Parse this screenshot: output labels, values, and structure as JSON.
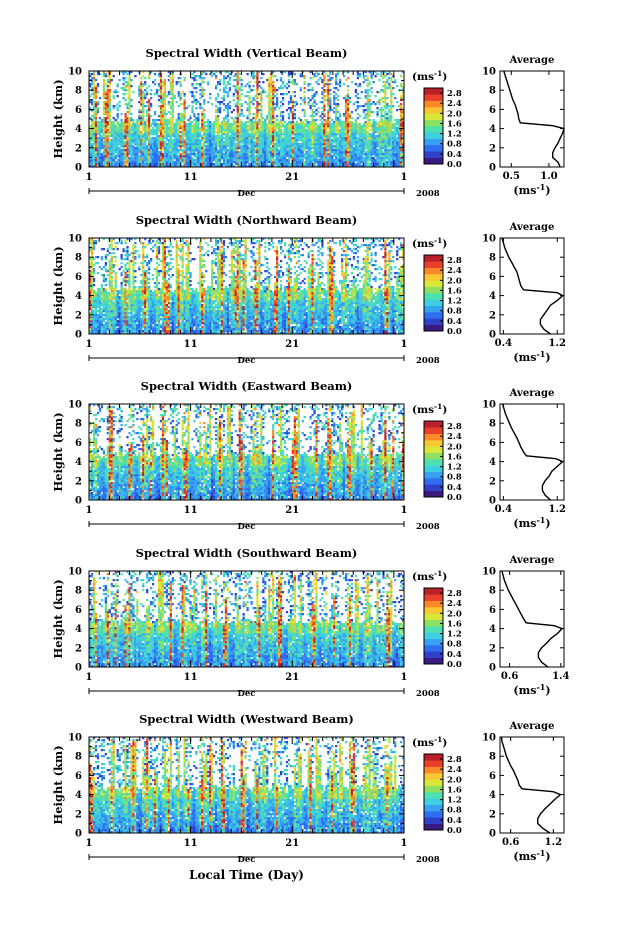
{
  "figure": {
    "xlabel": "Local Time (Day)",
    "colorbar_unit": "(ms",
    "colorbar_unit_exp": "-1",
    "colorbar_unit_close": ")",
    "avg_title": "Average",
    "ylabel": "Height (km)",
    "month_label": "Dec",
    "year_label": "2008"
  },
  "colors": {
    "colormap": [
      "#3a1a80",
      "#3040c8",
      "#2f6ef0",
      "#36a2f0",
      "#3ecfe0",
      "#4fe0b0",
      "#8ee060",
      "#d8e83a",
      "#f8c832",
      "#f88a28",
      "#e8402a",
      "#b8202a"
    ]
  },
  "chart_data": [
    {
      "type": "heatmap",
      "title": "Spectral Width (Vertical Beam)",
      "ylabel": "Height (km)",
      "ylim": [
        0,
        10
      ],
      "yticks": [
        0,
        2,
        4,
        6,
        8,
        10
      ],
      "xticks": [
        "1",
        "11",
        "21",
        "1"
      ],
      "xlabel_month": "Dec",
      "year": "2008",
      "colorbar_ticks": [
        "0.0",
        "0.4",
        "0.8",
        "1.2",
        "1.6",
        "2.0",
        "2.4",
        "2.8"
      ],
      "colorbar_range": [
        0.0,
        3.0
      ],
      "average": {
        "title": "Average",
        "xlabel": "(ms-1)",
        "xticks": [
          "0.5",
          "1.0"
        ],
        "xtick_values": [
          0.5,
          1.0
        ],
        "xlim": [
          0.35,
          1.2
        ],
        "height": [
          0,
          0.5,
          1.0,
          1.5,
          2.0,
          2.5,
          3.0,
          3.5,
          4.0,
          4.3,
          4.6,
          5.0,
          5.5,
          6.0,
          6.5,
          7.0,
          7.5,
          8.0,
          8.5,
          9.0,
          9.5,
          10.0
        ],
        "value": [
          1.15,
          1.12,
          1.05,
          1.05,
          1.08,
          1.12,
          1.15,
          1.18,
          1.2,
          1.05,
          0.62,
          0.6,
          0.59,
          0.57,
          0.55,
          0.52,
          0.5,
          0.48,
          0.46,
          0.44,
          0.42,
          0.4
        ]
      }
    },
    {
      "type": "heatmap",
      "title": "Spectral Width (Northward Beam)",
      "ylabel": "Height (km)",
      "ylim": [
        0,
        10
      ],
      "yticks": [
        0,
        2,
        4,
        6,
        8,
        10
      ],
      "xticks": [
        "1",
        "11",
        "21",
        "1"
      ],
      "xlabel_month": "Dec",
      "year": "2008",
      "colorbar_ticks": [
        "0.0",
        "0.4",
        "0.8",
        "1.2",
        "1.6",
        "2.0",
        "2.4",
        "2.8"
      ],
      "colorbar_range": [
        0.0,
        3.0
      ],
      "average": {
        "title": "Average",
        "xlabel": "(ms-1)",
        "xticks": [
          "0.4",
          "1.2"
        ],
        "xtick_values": [
          0.4,
          1.2
        ],
        "xlim": [
          0.35,
          1.3
        ],
        "height": [
          0,
          0.5,
          1.0,
          1.5,
          2.0,
          2.5,
          3.0,
          3.5,
          4.0,
          4.3,
          4.6,
          5.0,
          5.5,
          6.0,
          6.5,
          7.0,
          7.5,
          8.0,
          8.5,
          9.0,
          9.5,
          10.0
        ],
        "value": [
          1.1,
          1.0,
          0.95,
          0.95,
          1.0,
          1.05,
          1.1,
          1.2,
          1.28,
          1.2,
          0.7,
          0.66,
          0.64,
          0.62,
          0.6,
          0.56,
          0.52,
          0.48,
          0.45,
          0.42,
          0.4,
          0.38
        ]
      }
    },
    {
      "type": "heatmap",
      "title": "Spectral Width (Eastward Beam)",
      "ylabel": "Height (km)",
      "ylim": [
        0,
        10
      ],
      "yticks": [
        0,
        2,
        4,
        6,
        8,
        10
      ],
      "xticks": [
        "1",
        "11",
        "21",
        "1"
      ],
      "xlabel_month": "Dec",
      "year": "2008",
      "colorbar_ticks": [
        "0.0",
        "0.4",
        "0.8",
        "1.2",
        "1.6",
        "2.0",
        "2.4",
        "2.8"
      ],
      "colorbar_range": [
        0.0,
        3.0
      ],
      "average": {
        "title": "Average",
        "xlabel": "(ms-1)",
        "xticks": [
          "0.4",
          "1.2"
        ],
        "xtick_values": [
          0.4,
          1.2
        ],
        "xlim": [
          0.35,
          1.3
        ],
        "height": [
          0,
          0.5,
          1.0,
          1.5,
          2.0,
          2.5,
          3.0,
          3.5,
          4.0,
          4.3,
          4.6,
          5.0,
          5.5,
          6.0,
          6.5,
          7.0,
          7.5,
          8.0,
          8.5,
          9.0,
          9.5,
          10.0
        ],
        "value": [
          1.1,
          1.02,
          0.98,
          0.98,
          1.02,
          1.08,
          1.12,
          1.2,
          1.28,
          1.18,
          0.74,
          0.7,
          0.66,
          0.63,
          0.6,
          0.56,
          0.52,
          0.49,
          0.46,
          0.43,
          0.41,
          0.39
        ]
      }
    },
    {
      "type": "heatmap",
      "title": "Spectral Width (Southward Beam)",
      "ylabel": "Height (km)",
      "ylim": [
        0,
        10
      ],
      "yticks": [
        0,
        2,
        4,
        6,
        8,
        10
      ],
      "xticks": [
        "1",
        "11",
        "21",
        "1"
      ],
      "xlabel_month": "Dec",
      "year": "2008",
      "colorbar_ticks": [
        "0.0",
        "0.4",
        "0.8",
        "1.2",
        "1.6",
        "2.0",
        "2.4",
        "2.8"
      ],
      "colorbar_range": [
        0.0,
        3.0
      ],
      "average": {
        "title": "Average",
        "xlabel": "(ms-1)",
        "xticks": [
          "0.6",
          "1.4"
        ],
        "xtick_values": [
          0.6,
          1.4
        ],
        "xlim": [
          0.45,
          1.45
        ],
        "height": [
          0,
          0.5,
          1.0,
          1.5,
          2.0,
          2.5,
          3.0,
          3.5,
          4.0,
          4.3,
          4.6,
          5.0,
          5.5,
          6.0,
          6.5,
          7.0,
          7.5,
          8.0,
          8.5,
          9.0,
          9.5,
          10.0
        ],
        "value": [
          1.2,
          1.1,
          1.05,
          1.05,
          1.1,
          1.18,
          1.25,
          1.35,
          1.42,
          1.3,
          0.86,
          0.82,
          0.78,
          0.74,
          0.7,
          0.66,
          0.62,
          0.58,
          0.55,
          0.52,
          0.5,
          0.48
        ]
      }
    },
    {
      "type": "heatmap",
      "title": "Spectral Width (Westward Beam)",
      "ylabel": "Height (km)",
      "ylim": [
        0,
        10
      ],
      "yticks": [
        0,
        2,
        4,
        6,
        8,
        10
      ],
      "xticks": [
        "1",
        "11",
        "21",
        "1"
      ],
      "xlabel_month": "Dec",
      "year": "2008",
      "colorbar_ticks": [
        "0.0",
        "0.4",
        "0.8",
        "1.2",
        "1.6",
        "2.0",
        "2.4",
        "2.8"
      ],
      "colorbar_range": [
        0.0,
        3.0
      ],
      "average": {
        "title": "Average",
        "xlabel": "(ms-1)",
        "xticks": [
          "0.6",
          "1.2"
        ],
        "xtick_values": [
          0.6,
          1.2
        ],
        "xlim": [
          0.45,
          1.35
        ],
        "height": [
          0,
          0.5,
          1.0,
          1.5,
          2.0,
          2.5,
          3.0,
          3.5,
          4.0,
          4.3,
          4.6,
          5.0,
          5.5,
          6.0,
          6.5,
          7.0,
          7.5,
          8.0,
          8.5,
          9.0,
          9.5,
          10.0
        ],
        "value": [
          1.15,
          1.05,
          0.98,
          0.98,
          1.02,
          1.08,
          1.15,
          1.22,
          1.3,
          1.2,
          0.76,
          0.72,
          0.7,
          0.67,
          0.64,
          0.6,
          0.57,
          0.54,
          0.52,
          0.5,
          0.48,
          0.47
        ]
      }
    }
  ]
}
